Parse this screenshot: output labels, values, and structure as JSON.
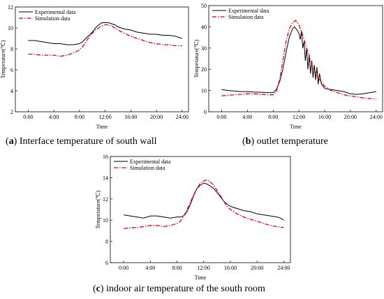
{
  "captions": [
    {
      "letter": "a",
      "text": " Interface temperature of south wall"
    },
    {
      "letter": "b",
      "text": " outlet temperature"
    },
    {
      "letter": "c",
      "text": " indoor air temperature of the south room"
    }
  ],
  "colors": {
    "experimental": "#000000",
    "simulation": "#e8000b"
  },
  "chart_data": [
    {
      "type": "line",
      "caption": "(a) Interface temperature of south wall",
      "xlabel": "Time",
      "ylabel": "Temperature(℃)",
      "xticks": [
        "0:00",
        "4:00",
        "8:00",
        "12:00",
        "16:00",
        "20:00",
        "24:00"
      ],
      "xlim": [
        -2,
        25
      ],
      "ylim": [
        2,
        12
      ],
      "yticks": [
        2,
        4,
        6,
        8,
        10,
        12
      ],
      "legend": "top-left",
      "series": [
        {
          "name": "Experimental data",
          "x": [
            0,
            1,
            2,
            3,
            4,
            5,
            6,
            7,
            8,
            8.5,
            9,
            9.5,
            10,
            10.5,
            11,
            11.5,
            12,
            12.5,
            13,
            13.5,
            14,
            15,
            16,
            17,
            18,
            19,
            20,
            21,
            22,
            23,
            24
          ],
          "y": [
            8.8,
            8.8,
            8.7,
            8.6,
            8.5,
            8.5,
            8.4,
            8.4,
            8.5,
            8.7,
            9.0,
            9.3,
            9.6,
            10.0,
            10.3,
            10.5,
            10.5,
            10.5,
            10.4,
            10.3,
            10.1,
            9.9,
            9.8,
            9.6,
            9.5,
            9.4,
            9.4,
            9.3,
            9.3,
            9.2,
            9.0
          ]
        },
        {
          "name": "Simulation data",
          "x": [
            0,
            1,
            2,
            3,
            4,
            5,
            6,
            7,
            8,
            8.5,
            9,
            9.5,
            10,
            10.5,
            11,
            11.5,
            12,
            12.5,
            13,
            13.5,
            14,
            15,
            16,
            17,
            18,
            19,
            20,
            21,
            22,
            23,
            24
          ],
          "y": [
            7.5,
            7.5,
            7.4,
            7.4,
            7.4,
            7.3,
            7.4,
            7.6,
            7.9,
            8.2,
            8.7,
            9.1,
            9.5,
            9.8,
            10.0,
            10.2,
            10.3,
            10.3,
            10.2,
            10.0,
            9.8,
            9.5,
            9.2,
            9.0,
            8.8,
            8.6,
            8.5,
            8.4,
            8.4,
            8.3,
            8.3
          ]
        }
      ]
    },
    {
      "type": "line",
      "caption": "(b) outlet temperature",
      "xlabel": "Time",
      "ylabel": "Temperature(℃)",
      "xticks": [
        "0:00",
        "4:00",
        "8:00",
        "12:00",
        "16:00",
        "20:00",
        "24:00"
      ],
      "xlim": [
        -2,
        25
      ],
      "ylim": [
        0,
        50
      ],
      "yticks": [
        0,
        10,
        20,
        30,
        40,
        50
      ],
      "legend": "top-left",
      "series": [
        {
          "name": "Experimental data",
          "x": [
            0,
            1,
            2,
            3,
            4,
            5,
            6,
            7,
            8,
            8.5,
            9,
            9.5,
            10,
            10.5,
            11,
            11.3,
            11.6,
            12,
            12.2,
            12.4,
            12.6,
            12.8,
            13,
            13.2,
            13.4,
            13.6,
            13.8,
            14,
            14.2,
            14.4,
            14.6,
            14.8,
            15,
            15.2,
            15.5,
            16,
            17,
            18,
            19,
            20,
            21,
            22,
            23,
            24
          ],
          "y": [
            10.5,
            10.0,
            9.8,
            9.5,
            9.5,
            9.3,
            9.2,
            9.0,
            9.0,
            10.5,
            14,
            20,
            28,
            35,
            39,
            40,
            39,
            37,
            34,
            38,
            30,
            33,
            24,
            30,
            20,
            27,
            18,
            24,
            16,
            22,
            15,
            21,
            13,
            18,
            13,
            11,
            10.5,
            10,
            9.5,
            8.5,
            8.2,
            8.5,
            9.0,
            9.5
          ]
        },
        {
          "name": "Simulation data",
          "x": [
            0,
            1,
            2,
            3,
            4,
            5,
            6,
            7,
            8,
            8.5,
            9,
            9.5,
            10,
            10.5,
            11,
            11.5,
            12,
            12.5,
            13,
            13.5,
            14,
            15,
            16,
            17,
            18,
            19,
            20,
            21,
            22,
            23,
            24
          ],
          "y": [
            7.5,
            7.8,
            8.0,
            8.2,
            8.5,
            8.5,
            8.3,
            8.0,
            8.0,
            9.5,
            15,
            24,
            33,
            39,
            42,
            43,
            41,
            37,
            32,
            27,
            22,
            16,
            12,
            10,
            9,
            8,
            7.5,
            7.0,
            6.5,
            6.2,
            6.0
          ]
        }
      ]
    },
    {
      "type": "line",
      "caption": "(c) indoor air temperature of the south room",
      "xlabel": "Time",
      "ylabel": "Temperature(℃)",
      "xticks": [
        "0:00",
        "4:00",
        "8:00",
        "12:00",
        "16:00",
        "20:00",
        "24:00"
      ],
      "xlim": [
        -2,
        25
      ],
      "ylim": [
        6,
        16
      ],
      "yticks": [
        6,
        8,
        10,
        12,
        14,
        16
      ],
      "legend": "top-left",
      "series": [
        {
          "name": "Experimental data",
          "x": [
            0,
            1,
            2,
            3,
            4,
            5,
            6,
            7,
            8,
            8.5,
            9,
            9.5,
            10,
            10.5,
            11,
            11.5,
            12,
            12.5,
            13,
            13.5,
            14,
            14.5,
            15,
            15.5,
            16,
            17,
            18,
            19,
            20,
            21,
            22,
            23,
            23.5,
            24
          ],
          "y": [
            10.5,
            10.4,
            10.3,
            10.2,
            10.4,
            10.4,
            10.3,
            10.2,
            10.3,
            10.3,
            10.4,
            10.8,
            11.5,
            12.3,
            13.0,
            13.3,
            13.5,
            13.4,
            13.2,
            13.0,
            12.6,
            12.2,
            11.8,
            11.5,
            11.3,
            11.1,
            10.9,
            10.8,
            10.6,
            10.5,
            10.4,
            10.3,
            10.2,
            10.0
          ]
        },
        {
          "name": "Simulation data",
          "x": [
            0,
            1,
            2,
            3,
            4,
            5,
            6,
            7,
            8,
            8.5,
            9,
            9.5,
            10,
            10.5,
            11,
            11.5,
            12,
            12.5,
            13,
            13.5,
            14,
            14.5,
            15,
            15.5,
            16,
            17,
            18,
            19,
            20,
            21,
            22,
            23,
            24
          ],
          "y": [
            9.2,
            9.3,
            9.3,
            9.4,
            9.5,
            9.5,
            9.4,
            9.5,
            9.7,
            9.9,
            10.4,
            11.0,
            11.7,
            12.4,
            13.0,
            13.5,
            13.7,
            13.8,
            13.6,
            13.3,
            12.8,
            12.3,
            11.8,
            11.3,
            11.0,
            10.6,
            10.3,
            10.1,
            9.9,
            9.7,
            9.5,
            9.4,
            9.3
          ]
        }
      ]
    }
  ]
}
